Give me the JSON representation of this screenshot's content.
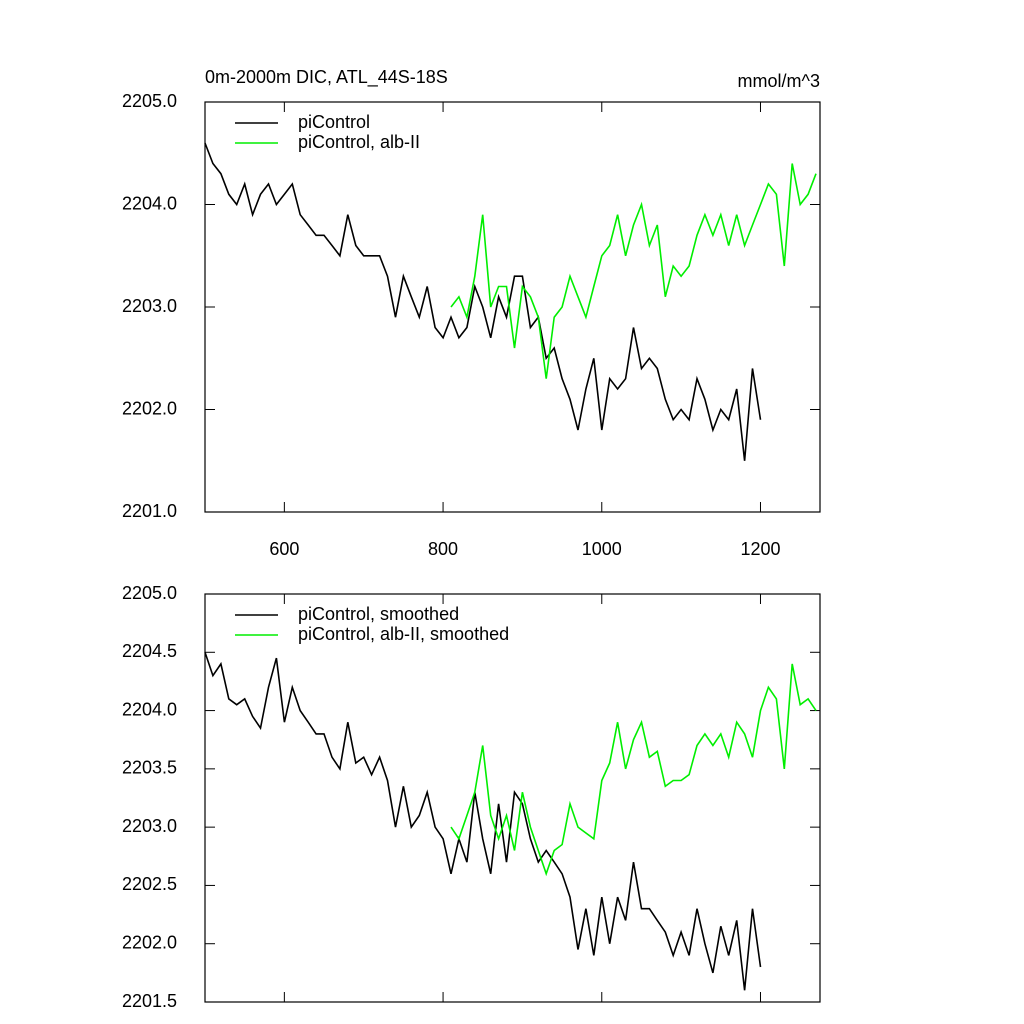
{
  "chart_data": [
    {
      "type": "line",
      "title": "0m-2000m DIC, ATL_44S-18S",
      "units": "mmol/m^3",
      "xlim": [
        500,
        1275
      ],
      "xticks": [
        600,
        800,
        1000,
        1200
      ],
      "xtick_labels": true,
      "ylim": [
        2201,
        2205
      ],
      "yticks": [
        {
          "value": 2201,
          "label": "2201.0"
        },
        {
          "value": 2202,
          "label": "2202.0"
        },
        {
          "value": 2203,
          "label": "2203.0"
        },
        {
          "value": 2204,
          "label": "2204.0"
        },
        {
          "value": 2205,
          "label": "2205.0"
        }
      ],
      "series": [
        {
          "name": "piControl",
          "color": "#000000",
          "x": [
            500,
            510,
            520,
            530,
            540,
            550,
            560,
            570,
            580,
            590,
            600,
            610,
            620,
            630,
            640,
            650,
            660,
            670,
            680,
            690,
            700,
            710,
            720,
            730,
            740,
            750,
            760,
            770,
            780,
            790,
            800,
            810,
            820,
            830,
            840,
            850,
            860,
            870,
            880,
            890,
            900,
            910,
            920,
            930,
            940,
            950,
            960,
            970,
            980,
            990,
            1000,
            1010,
            1020,
            1030,
            1040,
            1050,
            1060,
            1070,
            1080,
            1090,
            1100,
            1110,
            1120,
            1130,
            1140,
            1150,
            1160,
            1170,
            1180,
            1190,
            1200
          ],
          "values": [
            2204.6,
            2204.4,
            2204.3,
            2204.1,
            2204.0,
            2204.2,
            2203.9,
            2204.1,
            2204.2,
            2204.0,
            2204.1,
            2204.2,
            2203.9,
            2203.8,
            2203.7,
            2203.7,
            2203.6,
            2203.5,
            2203.9,
            2203.6,
            2203.5,
            2203.5,
            2203.5,
            2203.3,
            2202.9,
            2203.3,
            2203.1,
            2202.9,
            2203.2,
            2202.8,
            2202.7,
            2202.9,
            2202.7,
            2202.8,
            2203.2,
            2203.0,
            2202.7,
            2203.1,
            2202.9,
            2203.3,
            2203.3,
            2202.8,
            2202.9,
            2202.5,
            2202.6,
            2202.3,
            2202.1,
            2201.8,
            2202.2,
            2202.5,
            2201.8,
            2202.3,
            2202.2,
            2202.3,
            2202.8,
            2202.4,
            2202.5,
            2202.4,
            2202.1,
            2201.9,
            2202.0,
            2201.9,
            2202.3,
            2202.1,
            2201.8,
            2202.0,
            2201.9,
            2202.2,
            2201.5,
            2202.4,
            2201.9
          ]
        },
        {
          "name": "piControl, alb-II",
          "color": "#00ee00",
          "x": [
            810,
            820,
            830,
            840,
            850,
            860,
            870,
            880,
            890,
            900,
            910,
            920,
            930,
            940,
            950,
            960,
            970,
            980,
            990,
            1000,
            1010,
            1020,
            1030,
            1040,
            1050,
            1060,
            1070,
            1080,
            1090,
            1100,
            1110,
            1120,
            1130,
            1140,
            1150,
            1160,
            1170,
            1180,
            1190,
            1200,
            1210,
            1220,
            1230,
            1240,
            1250,
            1260,
            1270
          ],
          "values": [
            2203.0,
            2203.1,
            2202.9,
            2203.3,
            2203.9,
            2203.0,
            2203.2,
            2203.2,
            2202.6,
            2203.2,
            2203.1,
            2202.9,
            2202.3,
            2202.9,
            2203.0,
            2203.3,
            2203.1,
            2202.9,
            2203.2,
            2203.5,
            2203.6,
            2203.9,
            2203.5,
            2203.8,
            2204.0,
            2203.6,
            2203.8,
            2203.1,
            2203.4,
            2203.3,
            2203.4,
            2203.7,
            2203.9,
            2203.7,
            2203.9,
            2203.6,
            2203.9,
            2203.6,
            2203.8,
            2204.0,
            2204.2,
            2204.1,
            2203.4,
            2204.4,
            2204.0,
            2204.1,
            2204.3
          ]
        }
      ]
    },
    {
      "type": "line",
      "xlim": [
        500,
        1275
      ],
      "xticks": [
        600,
        800,
        1000,
        1200
      ],
      "xtick_labels": false,
      "ylim": [
        2201.5,
        2205
      ],
      "yticks": [
        {
          "value": 2201.5,
          "label": "2201.5"
        },
        {
          "value": 2202,
          "label": "2202.0"
        },
        {
          "value": 2202.5,
          "label": "2202.5"
        },
        {
          "value": 2203,
          "label": "2203.0"
        },
        {
          "value": 2203.5,
          "label": "2203.5"
        },
        {
          "value": 2204,
          "label": "2204.0"
        },
        {
          "value": 2204.5,
          "label": "2204.5"
        },
        {
          "value": 2205,
          "label": "2205.0"
        }
      ],
      "series": [
        {
          "name": "piControl, smoothed",
          "color": "#000000",
          "x": [
            500,
            510,
            520,
            530,
            540,
            550,
            560,
            570,
            580,
            590,
            600,
            610,
            620,
            630,
            640,
            650,
            660,
            670,
            680,
            690,
            700,
            710,
            720,
            730,
            740,
            750,
            760,
            770,
            780,
            790,
            800,
            810,
            820,
            830,
            840,
            850,
            860,
            870,
            880,
            890,
            900,
            910,
            920,
            930,
            940,
            950,
            960,
            970,
            980,
            990,
            1000,
            1010,
            1020,
            1030,
            1040,
            1050,
            1060,
            1070,
            1080,
            1090,
            1100,
            1110,
            1120,
            1130,
            1140,
            1150,
            1160,
            1170,
            1180,
            1190,
            1200
          ],
          "values": [
            2204.5,
            2204.3,
            2204.4,
            2204.1,
            2204.05,
            2204.1,
            2203.95,
            2203.85,
            2204.2,
            2204.45,
            2203.9,
            2204.2,
            2204.0,
            2203.9,
            2203.8,
            2203.8,
            2203.6,
            2203.5,
            2203.9,
            2203.55,
            2203.6,
            2203.45,
            2203.6,
            2203.4,
            2203.0,
            2203.35,
            2203.0,
            2203.1,
            2203.3,
            2203.0,
            2202.9,
            2202.6,
            2202.9,
            2202.7,
            2203.3,
            2202.9,
            2202.6,
            2203.2,
            2202.7,
            2203.3,
            2203.2,
            2202.9,
            2202.7,
            2202.8,
            2202.7,
            2202.6,
            2202.4,
            2201.95,
            2202.3,
            2201.9,
            2202.4,
            2202.0,
            2202.4,
            2202.2,
            2202.7,
            2202.3,
            2202.3,
            2202.2,
            2202.1,
            2201.9,
            2202.1,
            2201.9,
            2202.3,
            2202.0,
            2201.75,
            2202.15,
            2201.9,
            2202.2,
            2201.6,
            2202.3,
            2201.8
          ]
        },
        {
          "name": "piControl, alb-II, smoothed",
          "color": "#00ee00",
          "x": [
            810,
            820,
            830,
            840,
            850,
            860,
            870,
            880,
            890,
            900,
            910,
            920,
            930,
            940,
            950,
            960,
            970,
            980,
            990,
            1000,
            1010,
            1020,
            1030,
            1040,
            1050,
            1060,
            1070,
            1080,
            1090,
            1100,
            1110,
            1120,
            1130,
            1140,
            1150,
            1160,
            1170,
            1180,
            1190,
            1200,
            1210,
            1220,
            1230,
            1240,
            1250,
            1260,
            1270
          ],
          "values": [
            2203.0,
            2202.9,
            2203.1,
            2203.3,
            2203.7,
            2203.1,
            2202.9,
            2203.1,
            2202.8,
            2203.3,
            2203.0,
            2202.8,
            2202.6,
            2202.8,
            2202.85,
            2203.2,
            2203.0,
            2202.95,
            2202.9,
            2203.4,
            2203.55,
            2203.9,
            2203.5,
            2203.75,
            2203.9,
            2203.6,
            2203.65,
            2203.35,
            2203.4,
            2203.4,
            2203.45,
            2203.7,
            2203.8,
            2203.7,
            2203.8,
            2203.6,
            2203.9,
            2203.8,
            2203.6,
            2204.0,
            2204.2,
            2204.1,
            2203.5,
            2204.4,
            2204.05,
            2204.1,
            2204.0
          ]
        }
      ]
    }
  ]
}
